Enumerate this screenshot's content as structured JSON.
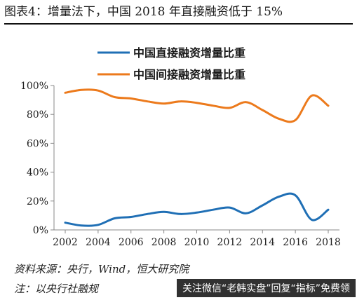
{
  "header": {
    "title": "图表4：增量法下，中国 2018 年直接融资低于 15%"
  },
  "footer": {
    "source": "资料来源：央行，Wind，恒大研究院",
    "note": "注：以央行社融规",
    "watermark": "关注微信“老韩实盘”回复“指标”免费领"
  },
  "chart_data": {
    "type": "line",
    "title": "",
    "xlabel": "",
    "ylabel": "",
    "x": [
      2002,
      2003,
      2004,
      2005,
      2006,
      2007,
      2008,
      2009,
      2010,
      2011,
      2012,
      2013,
      2014,
      2015,
      2016,
      2017,
      2018
    ],
    "xticks": [
      "2002",
      "2004",
      "2006",
      "2008",
      "2010",
      "2012",
      "2014",
      "2016",
      "2018"
    ],
    "yticks": [
      "0%",
      "20%",
      "40%",
      "60%",
      "80%",
      "100%"
    ],
    "ylim": [
      0,
      100
    ],
    "grid": false,
    "legend_position": "top",
    "series": [
      {
        "name": "中国直接融资增量比重",
        "color": "#1f6fb5",
        "values": [
          5,
          3,
          3.5,
          8,
          9,
          11,
          12.5,
          11,
          12,
          14,
          15.5,
          11.5,
          17,
          23,
          24,
          7,
          14
        ]
      },
      {
        "name": "中国间接融资增量比重",
        "color": "#ec7a1c",
        "values": [
          95,
          97,
          96.5,
          92,
          91,
          89,
          87.5,
          89,
          88,
          86,
          84.5,
          88.5,
          83,
          77,
          76,
          93,
          86
        ]
      }
    ]
  }
}
